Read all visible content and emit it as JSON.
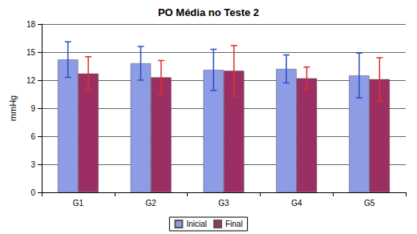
{
  "chart_data": {
    "type": "bar",
    "title": "PO Média no Teste 2",
    "y_label": "mmHg",
    "categories": [
      "G1",
      "G2",
      "G3",
      "G4",
      "G5"
    ],
    "series": [
      {
        "name": "Inicial",
        "color": "#8E9CE6",
        "values": [
          14.2,
          13.8,
          13.1,
          13.2,
          12.5
        ],
        "errors": [
          1.9,
          1.8,
          2.2,
          1.5,
          2.4
        ]
      },
      {
        "name": "Final",
        "color": "#9B2F63",
        "values": [
          12.7,
          12.3,
          13.0,
          12.2,
          12.1
        ],
        "errors": [
          1.8,
          1.8,
          2.7,
          1.2,
          2.3
        ]
      }
    ],
    "ylim": [
      0,
      18
    ],
    "yticks": [
      0,
      3,
      6,
      9,
      12,
      15,
      18
    ],
    "grid": true,
    "legend": "bottom"
  }
}
